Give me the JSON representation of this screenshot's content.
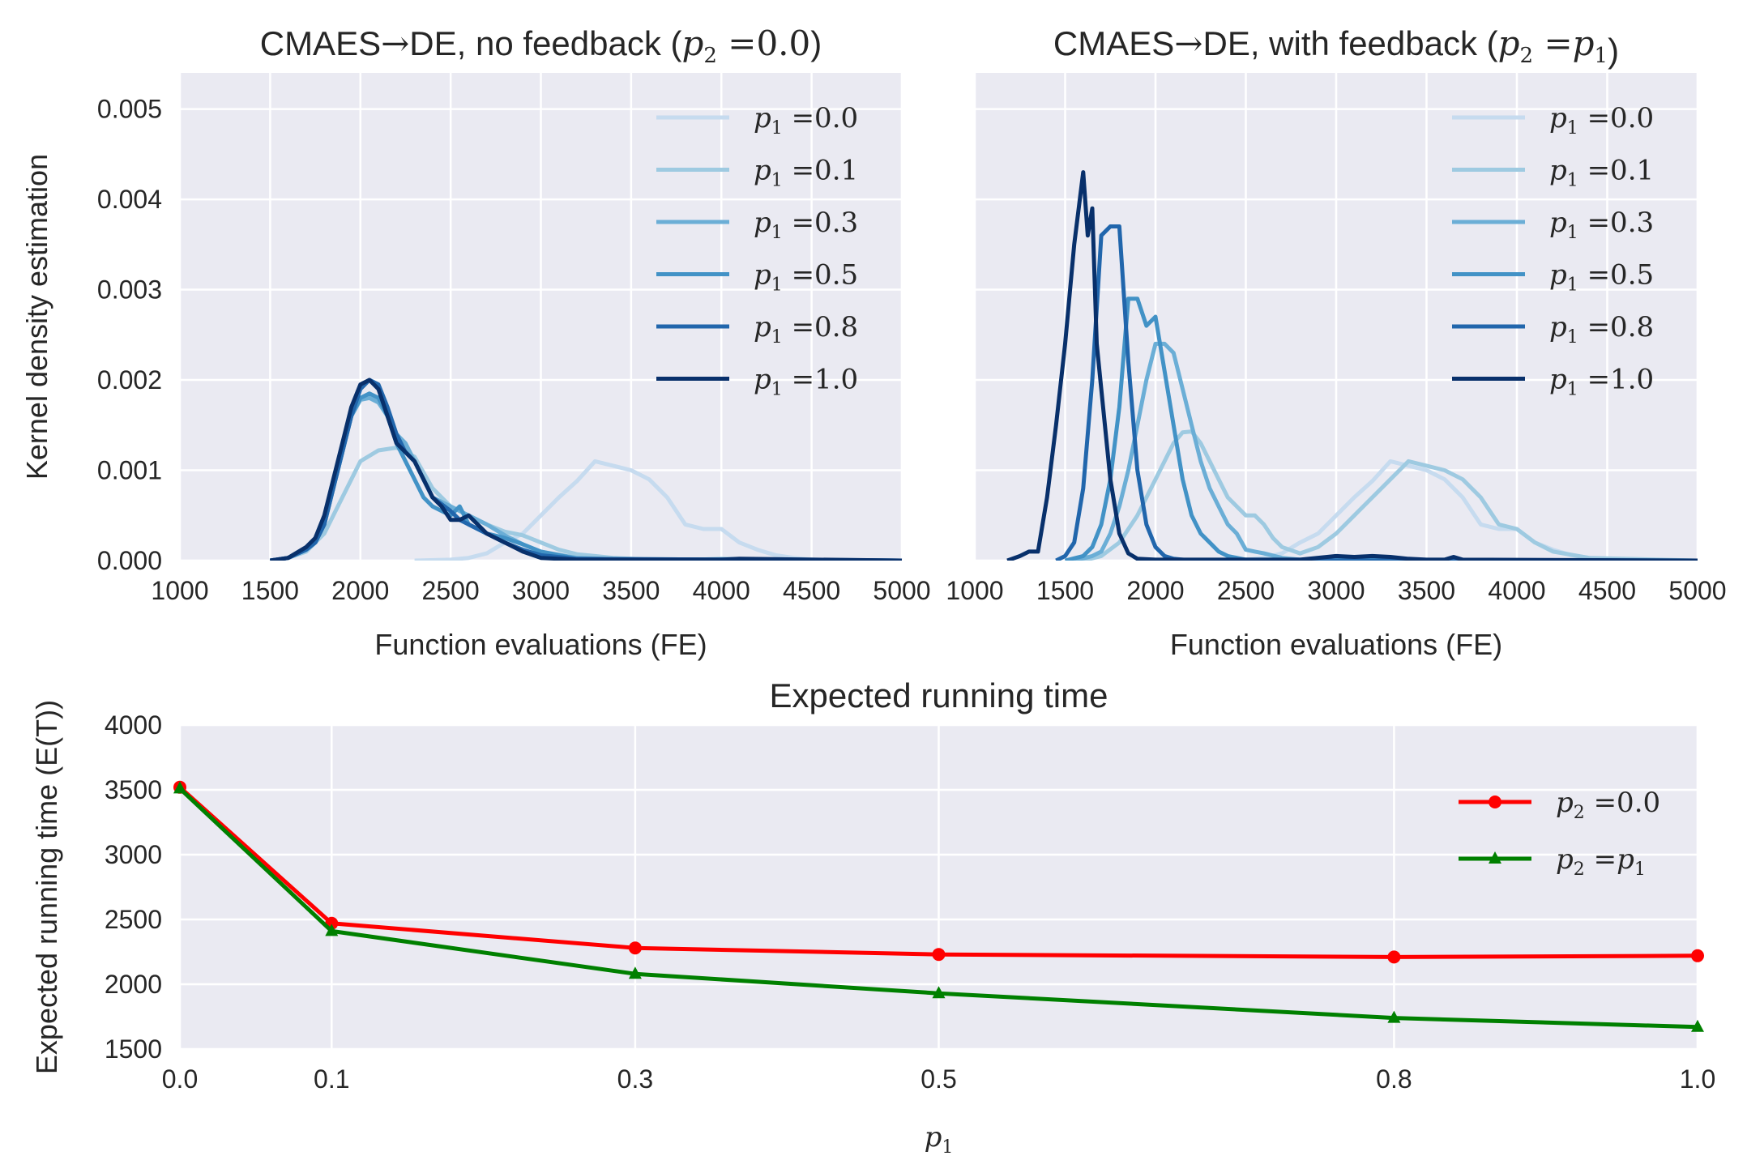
{
  "chart_data": [
    {
      "type": "line",
      "title_prefix": "CMAES",
      "title_arrow": "→",
      "title_mid": "DE, no feedback (",
      "title_math": "p",
      "title_sub": "2",
      "title_eq": " =0.0",
      "title_suffix": ")",
      "xlabel": "Function evaluations (FE)",
      "ylabel": "Kernel density estimation",
      "xlim": [
        1000,
        5000
      ],
      "ylim": [
        0,
        0.0054
      ],
      "xticks": [
        "1000",
        "1500",
        "2000",
        "2500",
        "3000",
        "3500",
        "4000",
        "4500",
        "5000"
      ],
      "yticks": [
        "0.000",
        "0.001",
        "0.002",
        "0.003",
        "0.004",
        "0.005"
      ],
      "grid": true,
      "legend": "top-right",
      "series": [
        {
          "name": "p1 =0.0",
          "label_math": "p",
          "label_sub": "1",
          "label_eq": " =0.0",
          "color": "#c6dbef",
          "x": [
            2300,
            2500,
            2600,
            2700,
            2800,
            2900,
            3000,
            3100,
            3200,
            3300,
            3400,
            3500,
            3600,
            3700,
            3800,
            3900,
            4000,
            4100,
            4200,
            4300,
            4400,
            4500,
            4700,
            5000
          ],
          "y": [
            0,
            1e-05,
            3e-05,
            8e-05,
            0.0002,
            0.0003,
            0.0005,
            0.0007,
            0.00088,
            0.0011,
            0.00105,
            0.001,
            0.0009,
            0.0007,
            0.0004,
            0.00035,
            0.00035,
            0.0002,
            0.00012,
            6e-05,
            3e-05,
            1e-05,
            0,
            0
          ]
        },
        {
          "name": "p1 =0.1",
          "label_math": "p",
          "label_sub": "1",
          "label_eq": " =0.1",
          "color": "#9ecae1",
          "x": [
            1500,
            1600,
            1700,
            1800,
            1900,
            2000,
            2100,
            2200,
            2300,
            2400,
            2500,
            2600,
            2700,
            2800,
            2900,
            3000,
            3100,
            3200,
            3300,
            3400,
            3500,
            3600,
            3800,
            4000,
            5000
          ],
          "y": [
            0,
            3e-05,
            0.0001,
            0.0003,
            0.0007,
            0.0011,
            0.00122,
            0.00125,
            0.00115,
            0.0008,
            0.0006,
            0.0005,
            0.0004,
            0.00032,
            0.00028,
            0.0002,
            0.00012,
            7e-05,
            5e-05,
            3e-05,
            2e-05,
            1e-05,
            5e-06,
            2e-05,
            0
          ]
        },
        {
          "name": "p1 =0.3",
          "label_math": "p",
          "label_sub": "1",
          "label_eq": " =0.3",
          "color": "#6baed6",
          "x": [
            1500,
            1600,
            1700,
            1750,
            1800,
            1850,
            1900,
            1950,
            2000,
            2050,
            2100,
            2150,
            2200,
            2250,
            2300,
            2350,
            2400,
            2500,
            2600,
            2700,
            2800,
            2900,
            3000,
            3200,
            3500,
            5000
          ],
          "y": [
            0,
            3e-05,
            0.00012,
            0.0002,
            0.0004,
            0.0008,
            0.0012,
            0.0016,
            0.00178,
            0.0018,
            0.00175,
            0.0016,
            0.0014,
            0.0013,
            0.0011,
            0.0009,
            0.0007,
            0.0006,
            0.0005,
            0.0004,
            0.00028,
            0.00018,
            0.0001,
            3e-05,
            1e-05,
            0
          ]
        },
        {
          "name": "p1 =0.5",
          "label_math": "p",
          "label_sub": "1",
          "label_eq": " =0.5",
          "color": "#4292c6",
          "x": [
            1500,
            1600,
            1700,
            1750,
            1800,
            1850,
            1900,
            1950,
            2000,
            2050,
            2100,
            2150,
            2200,
            2250,
            2300,
            2350,
            2400,
            2500,
            2550,
            2600,
            2700,
            2800,
            2900,
            3000,
            3200,
            5000
          ],
          "y": [
            0,
            3e-05,
            0.00012,
            0.0002,
            0.0004,
            0.0008,
            0.0012,
            0.0016,
            0.0018,
            0.00185,
            0.0018,
            0.0016,
            0.0013,
            0.0011,
            0.0009,
            0.0007,
            0.0006,
            0.0005,
            0.0006,
            0.0004,
            0.0003,
            0.00025,
            0.00018,
            0.0001,
            2e-05,
            0
          ]
        },
        {
          "name": "p1 =0.8",
          "label_math": "p",
          "label_sub": "1",
          "label_eq": " =0.8",
          "color": "#2166ac",
          "x": [
            1500,
            1600,
            1700,
            1750,
            1800,
            1850,
            1900,
            1950,
            2000,
            2050,
            2100,
            2150,
            2200,
            2250,
            2300,
            2350,
            2400,
            2500,
            2550,
            2600,
            2700,
            2800,
            2900,
            3000,
            3200,
            5000
          ],
          "y": [
            0,
            3e-05,
            0.00012,
            0.0002,
            0.0004,
            0.0008,
            0.0012,
            0.0016,
            0.0019,
            0.002,
            0.00195,
            0.0017,
            0.0014,
            0.0012,
            0.0011,
            0.0009,
            0.0007,
            0.00055,
            0.00045,
            0.0004,
            0.0003,
            0.0002,
            0.00012,
            6e-05,
            2e-05,
            0
          ]
        },
        {
          "name": "p1 =1.0",
          "label_math": "p",
          "label_sub": "1",
          "label_eq": " =1.0",
          "color": "#08306b",
          "x": [
            1500,
            1600,
            1700,
            1750,
            1800,
            1850,
            1900,
            1950,
            2000,
            2050,
            2100,
            2150,
            2200,
            2250,
            2300,
            2350,
            2400,
            2450,
            2500,
            2550,
            2600,
            2650,
            2700,
            2800,
            2900,
            3000,
            3200,
            4000,
            4100,
            5000
          ],
          "y": [
            0,
            3e-05,
            0.00015,
            0.00025,
            0.0005,
            0.0009,
            0.0013,
            0.0017,
            0.00195,
            0.002,
            0.0019,
            0.0016,
            0.0013,
            0.0012,
            0.0011,
            0.0009,
            0.0007,
            0.0006,
            0.00045,
            0.00045,
            0.0005,
            0.0004,
            0.0003,
            0.0002,
            0.0001,
            3e-05,
            1e-05,
            1e-05,
            2e-05,
            0
          ]
        }
      ]
    },
    {
      "type": "line",
      "title_prefix": "CMAES",
      "title_arrow": "→",
      "title_mid": "DE, with feedback (",
      "title_math": "p",
      "title_sub": "2",
      "title_eq": " =",
      "title_math2": "p",
      "title_sub2": "1",
      "title_suffix": ")",
      "xlabel": "Function evaluations (FE)",
      "ylabel": "",
      "xlim": [
        1000,
        5000
      ],
      "ylim": [
        0,
        0.0054
      ],
      "xticks": [
        "1000",
        "1500",
        "2000",
        "2500",
        "3000",
        "3500",
        "4000",
        "4500",
        "5000"
      ],
      "yticks": [],
      "grid": true,
      "legend": "top-right",
      "series": [
        {
          "name": "p1 =0.0",
          "label_math": "p",
          "label_sub": "1",
          "label_eq": " =0.0",
          "color": "#c6dbef",
          "x": [
            2300,
            2500,
            2600,
            2700,
            2800,
            2900,
            3000,
            3100,
            3200,
            3300,
            3400,
            3500,
            3600,
            3700,
            3800,
            3900,
            4000,
            4100,
            4200,
            4300,
            4400,
            4500,
            4700,
            5000
          ],
          "y": [
            0,
            1e-05,
            3e-05,
            8e-05,
            0.0002,
            0.0003,
            0.0005,
            0.0007,
            0.00088,
            0.0011,
            0.00105,
            0.001,
            0.0009,
            0.0007,
            0.0004,
            0.00035,
            0.00035,
            0.0002,
            0.00012,
            6e-05,
            3e-05,
            1e-05,
            0,
            0
          ]
        },
        {
          "name": "p1 =0.1",
          "label_math": "p",
          "label_sub": "1",
          "label_eq": " =0.1",
          "color": "#9ecae1",
          "x": [
            1600,
            1700,
            1800,
            1900,
            2000,
            2050,
            2100,
            2150,
            2200,
            2250,
            2300,
            2350,
            2400,
            2450,
            2500,
            2550,
            2600,
            2650,
            2700,
            2800,
            2900,
            3000,
            3100,
            3200,
            3300,
            3400,
            3500,
            3600,
            3700,
            3800,
            3900,
            4000,
            4100,
            4200,
            4400,
            5000
          ],
          "y": [
            0,
            5e-05,
            0.0002,
            0.0005,
            0.0009,
            0.0011,
            0.0013,
            0.00142,
            0.00143,
            0.0013,
            0.0011,
            0.0009,
            0.0007,
            0.0006,
            0.0005,
            0.0005,
            0.0004,
            0.00025,
            0.00015,
            8e-05,
            0.00015,
            0.0003,
            0.0005,
            0.0007,
            0.0009,
            0.0011,
            0.00105,
            0.001,
            0.0009,
            0.0007,
            0.0004,
            0.00035,
            0.0002,
            0.0001,
            3e-05,
            0
          ]
        },
        {
          "name": "p1 =0.3",
          "label_math": "p",
          "label_sub": "1",
          "label_eq": " =0.3",
          "color": "#6baed6",
          "x": [
            1550,
            1650,
            1700,
            1750,
            1800,
            1850,
            1900,
            1950,
            2000,
            2050,
            2100,
            2150,
            2200,
            2250,
            2300,
            2350,
            2400,
            2450,
            2500,
            2550,
            2600,
            2700,
            2800,
            5000
          ],
          "y": [
            0,
            5e-05,
            0.0001,
            0.0003,
            0.0006,
            0.001,
            0.0015,
            0.002,
            0.0024,
            0.0024,
            0.0023,
            0.0019,
            0.0015,
            0.0011,
            0.0008,
            0.0006,
            0.0004,
            0.0003,
            0.00012,
            0.0001,
            8e-05,
            3e-05,
            1e-05,
            0
          ]
        },
        {
          "name": "p1 =0.5",
          "label_math": "p",
          "label_sub": "1",
          "label_eq": " =0.5",
          "color": "#4292c6",
          "x": [
            1500,
            1600,
            1650,
            1700,
            1750,
            1800,
            1850,
            1900,
            1950,
            2000,
            2050,
            2100,
            2150,
            2200,
            2250,
            2300,
            2350,
            2400,
            2500,
            5000
          ],
          "y": [
            0,
            5e-05,
            0.00015,
            0.0004,
            0.0009,
            0.0017,
            0.0029,
            0.0029,
            0.0026,
            0.0027,
            0.0021,
            0.0015,
            0.0009,
            0.0005,
            0.0003,
            0.0002,
            0.0001,
            5e-05,
            1e-05,
            0
          ]
        },
        {
          "name": "p1 =0.8",
          "label_math": "p",
          "label_sub": "1",
          "label_eq": " =0.8",
          "color": "#2166ac",
          "x": [
            1450,
            1500,
            1550,
            1600,
            1650,
            1700,
            1750,
            1800,
            1850,
            1900,
            1950,
            2000,
            2050,
            2100,
            2200,
            5000
          ],
          "y": [
            0,
            5e-05,
            0.0002,
            0.0008,
            0.002,
            0.0036,
            0.0037,
            0.0037,
            0.0022,
            0.001,
            0.0004,
            0.00015,
            5e-05,
            2e-05,
            0,
            0
          ]
        },
        {
          "name": "p1 =1.0",
          "label_math": "p",
          "label_sub": "1",
          "label_eq": " =1.0",
          "color": "#08306b",
          "x": [
            1180,
            1250,
            1300,
            1350,
            1400,
            1450,
            1500,
            1550,
            1600,
            1625,
            1650,
            1675,
            1700,
            1750,
            1800,
            1850,
            1900,
            2000,
            2800,
            3000,
            3100,
            3200,
            3300,
            3400,
            3500,
            3600,
            3650,
            3700,
            5000
          ],
          "y": [
            0,
            5e-05,
            0.0001,
            0.0001,
            0.0007,
            0.0015,
            0.0024,
            0.0035,
            0.0043,
            0.0036,
            0.0039,
            0.0024,
            0.0019,
            0.0009,
            0.0003,
            8e-05,
            2e-05,
            1e-05,
            1e-05,
            5e-05,
            4e-05,
            5e-05,
            4e-05,
            2e-05,
            1e-05,
            1e-05,
            4e-05,
            1e-05,
            0
          ]
        }
      ]
    },
    {
      "type": "line",
      "title": "Expected running time",
      "xlabel_math": "p",
      "xlabel_sub": "1",
      "ylabel": "Expected running time (E(T))",
      "xlim": [
        0,
        1
      ],
      "ylim": [
        1500,
        4000
      ],
      "xticks": [
        "0.0",
        "0.1",
        "0.3",
        "0.5",
        "0.8",
        "1.0"
      ],
      "xtick_values": [
        0.0,
        0.1,
        0.3,
        0.5,
        0.8,
        1.0
      ],
      "yticks": [
        "1500",
        "2000",
        "2500",
        "3000",
        "3500",
        "4000"
      ],
      "grid": true,
      "legend": "top-right",
      "series": [
        {
          "name": "p2 =0.0",
          "label_math": "p",
          "label_sub": "2",
          "label_eq": " =0.0",
          "color": "#ff0000",
          "marker": "circle",
          "x": [
            0.0,
            0.1,
            0.3,
            0.5,
            0.8,
            1.0
          ],
          "y": [
            3520,
            2470,
            2280,
            2230,
            2210,
            2220
          ]
        },
        {
          "name": "p2 =p1",
          "label_math": "p",
          "label_sub": "2",
          "label_eq": " =",
          "label_math2": "p",
          "label_sub2": "1",
          "color": "#008000",
          "marker": "triangle",
          "x": [
            0.0,
            0.1,
            0.3,
            0.5,
            0.8,
            1.0
          ],
          "y": [
            3510,
            2410,
            2080,
            1930,
            1740,
            1670
          ]
        }
      ]
    }
  ]
}
